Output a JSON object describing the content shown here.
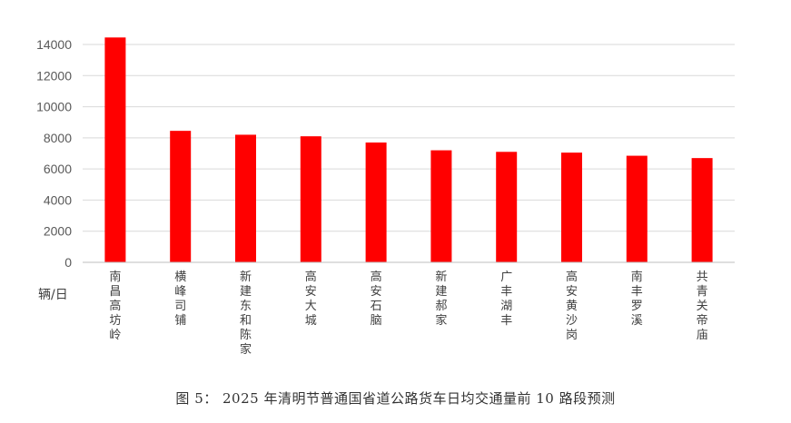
{
  "caption": "图 5： 2025 年清明节普通国省道公路货车日均交通量前 10 路段预测",
  "colors": {
    "bar": "#ff0000",
    "grid": "#d9d9d9",
    "axis": "#bfbfbf"
  },
  "chart_data": {
    "type": "bar",
    "title": "",
    "ylabel": "辆/日",
    "xlabel": "",
    "ylim": [
      0,
      14000
    ],
    "yticks": [
      0,
      2000,
      4000,
      6000,
      8000,
      10000,
      12000,
      14000
    ],
    "grid": true,
    "legend": "none",
    "categories": [
      "南昌高坊岭",
      "横峰司铺",
      "新建东和陈家",
      "高安大城",
      "高安石脑",
      "新建郝家",
      "广丰湖丰",
      "高安黄沙岗",
      "南丰罗溪",
      "共青关帝庙"
    ],
    "values": [
      14450,
      8450,
      8200,
      8100,
      7700,
      7200,
      7100,
      7050,
      6850,
      6700
    ]
  }
}
